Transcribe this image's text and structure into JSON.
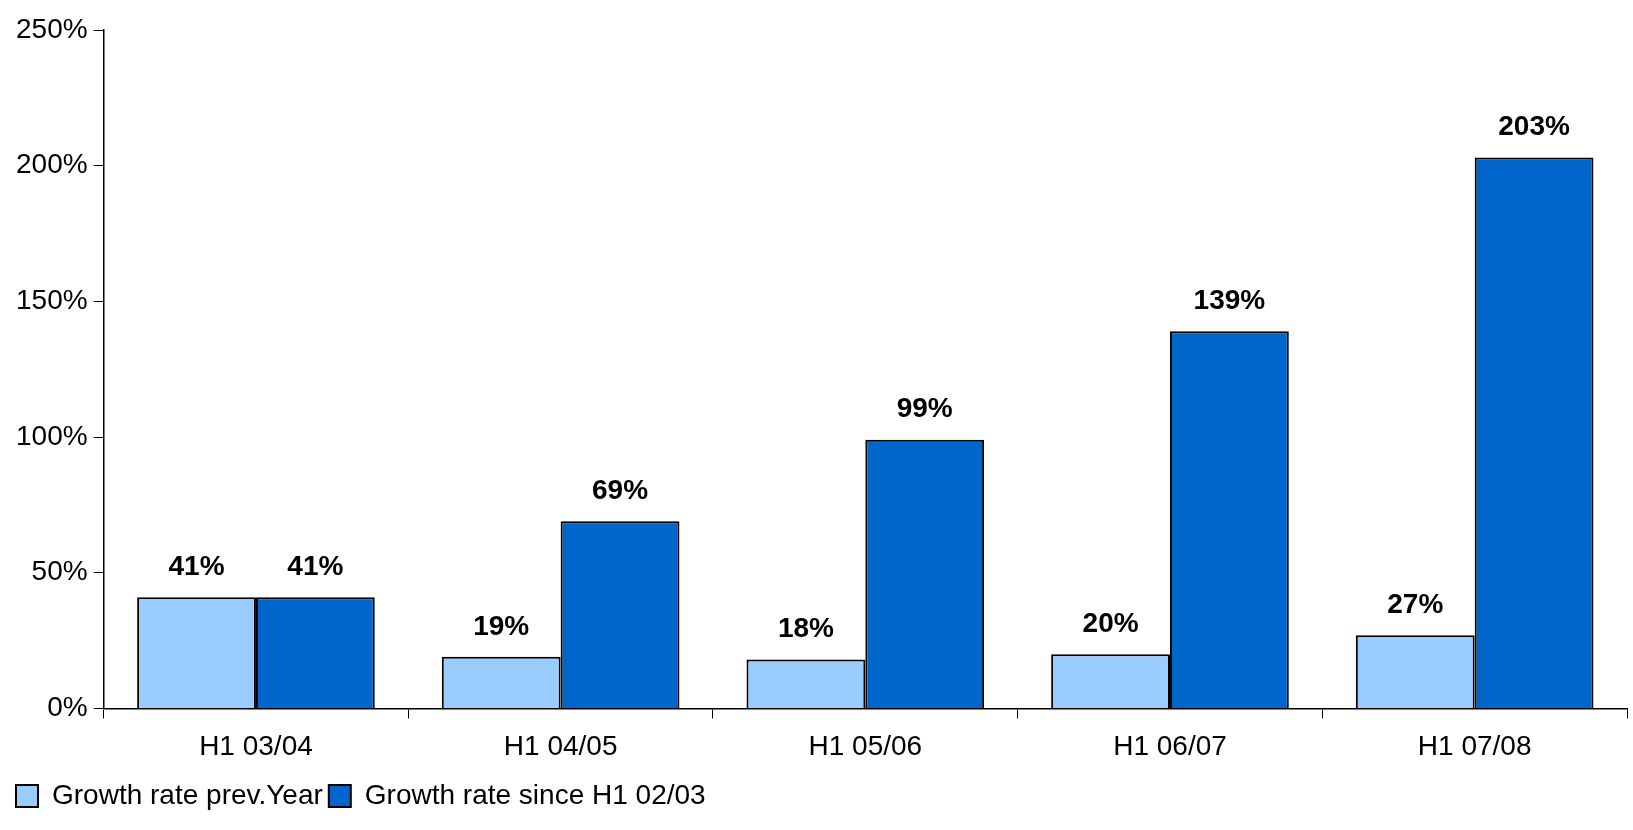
{
  "chart_data": {
    "type": "bar",
    "categories": [
      "H1 03/04",
      "H1 04/05",
      "H1 05/06",
      "H1 06/07",
      "H1 07/08"
    ],
    "series": [
      {
        "name": "Growth rate prev.Year",
        "color": "#99ccff",
        "values": [
          41,
          19,
          18,
          20,
          27
        ],
        "value_labels": [
          "41%",
          "19%",
          "18%",
          "20%",
          "27%"
        ]
      },
      {
        "name": "Growth rate since H1 02/03",
        "color": "#0066cc",
        "values": [
          41,
          69,
          99,
          139,
          203
        ],
        "value_labels": [
          "41%",
          "69%",
          "99%",
          "139%",
          "203%"
        ]
      }
    ],
    "ylim": [
      0,
      250
    ],
    "yticks": [
      {
        "value": 0,
        "label": "0%"
      },
      {
        "value": 50,
        "label": "50%"
      },
      {
        "value": 100,
        "label": "100%"
      },
      {
        "value": 150,
        "label": "150%"
      },
      {
        "value": 200,
        "label": "200%"
      },
      {
        "value": 250,
        "label": "250%"
      }
    ],
    "grid": false,
    "legend": "bottom left"
  }
}
